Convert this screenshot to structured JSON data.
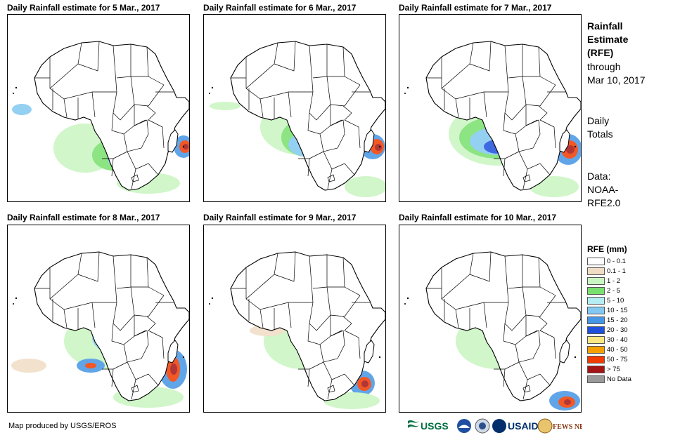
{
  "panels": [
    {
      "title": "Daily Rainfall estimate for 5 Mar., 2017"
    },
    {
      "title": "Daily Rainfall estimate for 6 Mar., 2017"
    },
    {
      "title": "Daily Rainfall estimate for 7 Mar., 2017"
    },
    {
      "title": "Daily Rainfall estimate for 8 Mar., 2017"
    },
    {
      "title": "Daily Rainfall estimate for 9 Mar., 2017"
    },
    {
      "title": "Daily Rainfall estimate for 10 Mar., 2017"
    }
  ],
  "sidebar": {
    "title": [
      "Rainfall",
      "Estimate",
      "(RFE)"
    ],
    "through": [
      "through",
      "Mar 10, 2017"
    ],
    "totals": [
      "Daily",
      "Totals"
    ],
    "data": [
      "Data:",
      "NOAA-",
      "RFE2.0"
    ]
  },
  "legend": {
    "title": "RFE (mm)",
    "items": [
      {
        "label": "0 - 0.1",
        "color": "#ffffff"
      },
      {
        "label": "0.1 - 1",
        "color": "#f0dcc4"
      },
      {
        "label": "1 - 2",
        "color": "#c8f5c0"
      },
      {
        "label": "2 - 5",
        "color": "#78e06e"
      },
      {
        "label": "5 - 10",
        "color": "#b4eef4"
      },
      {
        "label": "10 - 15",
        "color": "#82c8f0"
      },
      {
        "label": "15 - 20",
        "color": "#4696e6"
      },
      {
        "label": "20 - 30",
        "color": "#1e50dc"
      },
      {
        "label": "30 - 40",
        "color": "#fae682"
      },
      {
        "label": "40 - 50",
        "color": "#f5a000"
      },
      {
        "label": "50 - 75",
        "color": "#f03c00"
      },
      {
        "label": "> 75",
        "color": "#a51414"
      },
      {
        "label": "No Data",
        "color": "#9a9a9a"
      }
    ]
  },
  "credit": "Map produced by USGS/EROS",
  "logos": {
    "usgs": "USGS",
    "usaid": "USAID",
    "fewsnet": "FEWS NET"
  }
}
